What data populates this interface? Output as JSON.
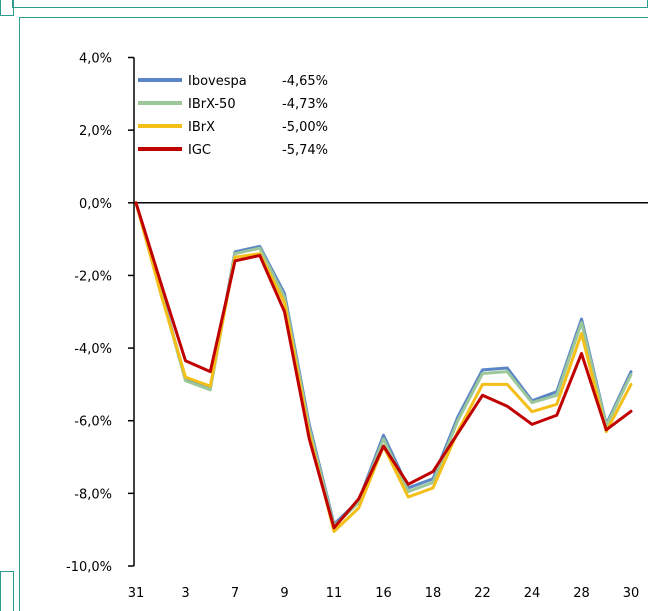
{
  "chart_data": {
    "type": "line",
    "title": "",
    "xlabel": "",
    "ylabel": "",
    "ylim": [
      -10,
      4
    ],
    "y_ticks": [
      4,
      2,
      0,
      -2,
      -4,
      -6,
      -8,
      -10
    ],
    "y_tick_labels": [
      "4,0%",
      "2,0%",
      "0,0%",
      "-2,0%",
      "-4,0%",
      "-6,0%",
      "-8,0%",
      "-10,0%"
    ],
    "x_tick_labels": [
      "31",
      "3",
      "7",
      "9",
      "11",
      "16",
      "18",
      "22",
      "24",
      "28",
      "30"
    ],
    "x_tick_every": 2,
    "point_count": 21,
    "grid": false,
    "legend_position": "top-left",
    "series": [
      {
        "name": "Ibovespa",
        "legend_value": "-4,65%",
        "color": "#5b86c5",
        "values": [
          0.0,
          -2.4,
          -4.85,
          -5.1,
          -1.35,
          -1.2,
          -2.5,
          -6.1,
          -8.85,
          -8.2,
          -6.4,
          -7.85,
          -7.6,
          -5.9,
          -4.6,
          -4.55,
          -5.45,
          -5.2,
          -3.2,
          -6.1,
          -4.65
        ]
      },
      {
        "name": "IBrX-50",
        "legend_value": "-4,73%",
        "color": "#9bc79b",
        "values": [
          0.0,
          -2.45,
          -4.9,
          -5.15,
          -1.4,
          -1.25,
          -2.6,
          -6.2,
          -8.9,
          -8.25,
          -6.5,
          -7.95,
          -7.7,
          -6.0,
          -4.7,
          -4.65,
          -5.5,
          -5.3,
          -3.3,
          -6.15,
          -4.73
        ]
      },
      {
        "name": "IBrX",
        "legend_value": "-5,00%",
        "color": "#f5bf1a",
        "values": [
          0.0,
          -2.5,
          -4.8,
          -5.05,
          -1.5,
          -1.4,
          -2.75,
          -6.35,
          -9.05,
          -8.4,
          -6.7,
          -8.1,
          -7.85,
          -6.3,
          -5.0,
          -5.0,
          -5.75,
          -5.55,
          -3.6,
          -6.3,
          -5.0
        ]
      },
      {
        "name": "IGC",
        "legend_value": "-5,74%",
        "color": "#c00000",
        "values": [
          0.0,
          -2.2,
          -4.35,
          -4.65,
          -1.6,
          -1.45,
          -3.0,
          -6.5,
          -8.95,
          -8.15,
          -6.7,
          -7.75,
          -7.4,
          -6.35,
          -5.3,
          -5.6,
          -6.1,
          -5.85,
          -4.15,
          -6.25,
          -5.74
        ]
      }
    ]
  }
}
